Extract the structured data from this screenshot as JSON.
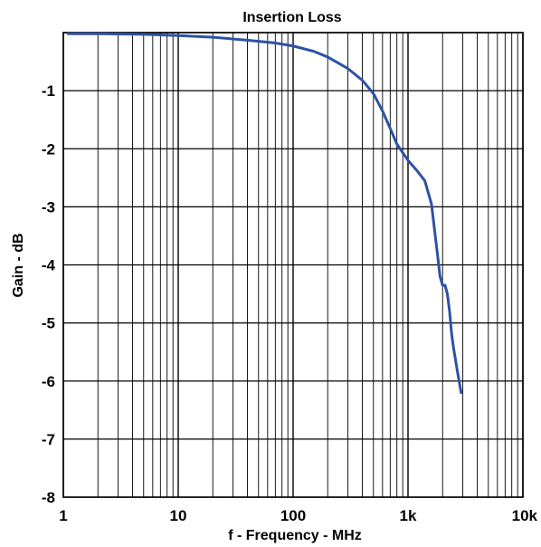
{
  "chart_data": {
    "type": "line",
    "title": "Insertion Loss",
    "xlabel": "f - Frequency - MHz",
    "ylabel": "Gain - dB",
    "x_scale": "log",
    "xlim": [
      1,
      10000
    ],
    "ylim": [
      -8,
      0
    ],
    "x_ticks": [
      {
        "value": 1,
        "label": "1"
      },
      {
        "value": 10,
        "label": "10"
      },
      {
        "value": 100,
        "label": "100"
      },
      {
        "value": 1000,
        "label": "1k"
      },
      {
        "value": 10000,
        "label": "10k"
      }
    ],
    "y_ticks": [
      {
        "value": -1,
        "label": "-1"
      },
      {
        "value": -2,
        "label": "-2"
      },
      {
        "value": -3,
        "label": "-3"
      },
      {
        "value": -4,
        "label": "-4"
      },
      {
        "value": -5,
        "label": "-5"
      },
      {
        "value": -6,
        "label": "-6"
      },
      {
        "value": -7,
        "label": "-7"
      },
      {
        "value": -8,
        "label": "-8"
      }
    ],
    "grid": true,
    "line_color": "#2E52A4",
    "series": [
      {
        "x": [
          1.1,
          2,
          5,
          10,
          20,
          40,
          70,
          100,
          150,
          200,
          300,
          400,
          500,
          600,
          700,
          800,
          1000,
          1200,
          1400,
          1600,
          1800,
          1900,
          2000,
          2100,
          2200,
          2300,
          2400,
          2500,
          2700,
          2900
        ],
        "y": [
          -0.02,
          -0.02,
          -0.03,
          -0.05,
          -0.08,
          -0.13,
          -0.18,
          -0.23,
          -0.32,
          -0.42,
          -0.62,
          -0.82,
          -1.05,
          -1.35,
          -1.65,
          -1.92,
          -2.2,
          -2.38,
          -2.55,
          -2.95,
          -3.8,
          -4.2,
          -4.35,
          -4.35,
          -4.5,
          -4.8,
          -5.2,
          -5.45,
          -5.85,
          -6.2
        ]
      }
    ]
  }
}
